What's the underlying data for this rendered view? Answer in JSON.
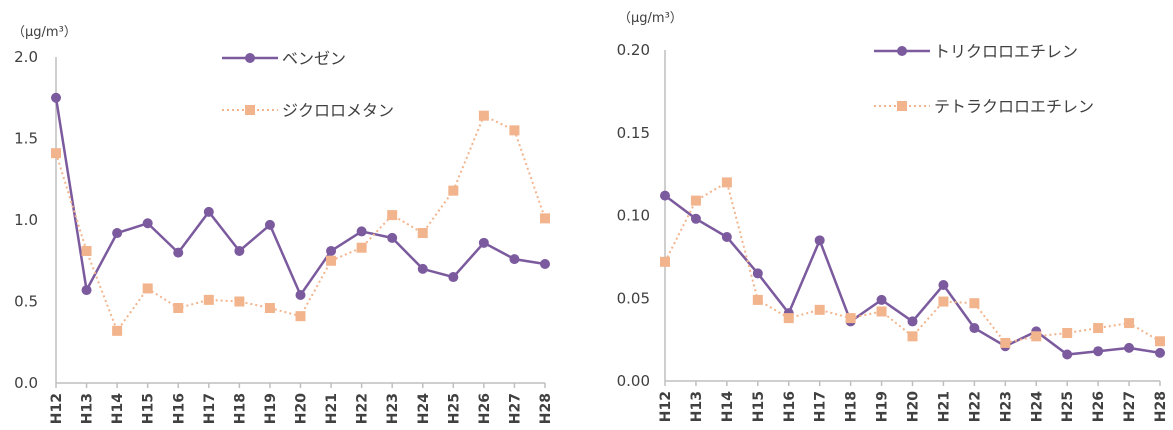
{
  "chart_data": [
    {
      "type": "line",
      "unit_label": "（μg/m³）",
      "categories": [
        "H12",
        "H13",
        "H14",
        "H15",
        "H16",
        "H17",
        "H18",
        "H19",
        "H20",
        "H21",
        "H22",
        "H23",
        "H24",
        "H25",
        "H26",
        "H27",
        "H28"
      ],
      "ylim": [
        0,
        2.0
      ],
      "yticks": [
        "0.0",
        "0.5",
        "1.0",
        "1.5",
        "2.0"
      ],
      "ytick_values": [
        0,
        0.5,
        1.0,
        1.5,
        2.0
      ],
      "grid": false,
      "legend_position": "top-center",
      "series": [
        {
          "name": "ベンゼン",
          "style": "solid-circle",
          "color": "#7b5a9e",
          "values": [
            1.75,
            0.57,
            0.92,
            0.98,
            0.8,
            1.05,
            0.81,
            0.97,
            0.54,
            0.81,
            0.93,
            0.89,
            0.7,
            0.65,
            0.86,
            0.76,
            0.73
          ]
        },
        {
          "name": "ジクロロメタン",
          "style": "dotted-square",
          "color": "#f2b48c",
          "values": [
            1.41,
            0.81,
            0.32,
            0.58,
            0.46,
            0.51,
            0.5,
            0.46,
            0.41,
            0.75,
            0.83,
            1.03,
            0.92,
            1.18,
            1.64,
            1.55,
            1.01
          ]
        }
      ]
    },
    {
      "type": "line",
      "unit_label": "（μg/m³）",
      "categories": [
        "H12",
        "H13",
        "H14",
        "H15",
        "H16",
        "H17",
        "H18",
        "H19",
        "H20",
        "H21",
        "H22",
        "H23",
        "H24",
        "H25",
        "H26",
        "H27",
        "H28"
      ],
      "ylim": [
        0,
        0.2
      ],
      "yticks": [
        "0.00",
        "0.05",
        "0.10",
        "0.15",
        "0.20"
      ],
      "ytick_values": [
        0,
        0.05,
        0.1,
        0.15,
        0.2
      ],
      "grid": false,
      "legend_position": "top-center",
      "series": [
        {
          "name": "トリクロロエチレン",
          "style": "solid-circle",
          "color": "#7b5a9e",
          "values": [
            0.112,
            0.098,
            0.087,
            0.065,
            0.041,
            0.085,
            0.036,
            0.049,
            0.036,
            0.058,
            0.032,
            0.021,
            0.03,
            0.016,
            0.018,
            0.02,
            0.017
          ]
        },
        {
          "name": "テトラクロロエチレン",
          "style": "dotted-square",
          "color": "#f2b48c",
          "values": [
            0.072,
            0.109,
            0.12,
            0.049,
            0.038,
            0.043,
            0.038,
            0.042,
            0.027,
            0.048,
            0.047,
            0.023,
            0.027,
            0.029,
            0.032,
            0.035,
            0.024
          ]
        }
      ]
    }
  ]
}
